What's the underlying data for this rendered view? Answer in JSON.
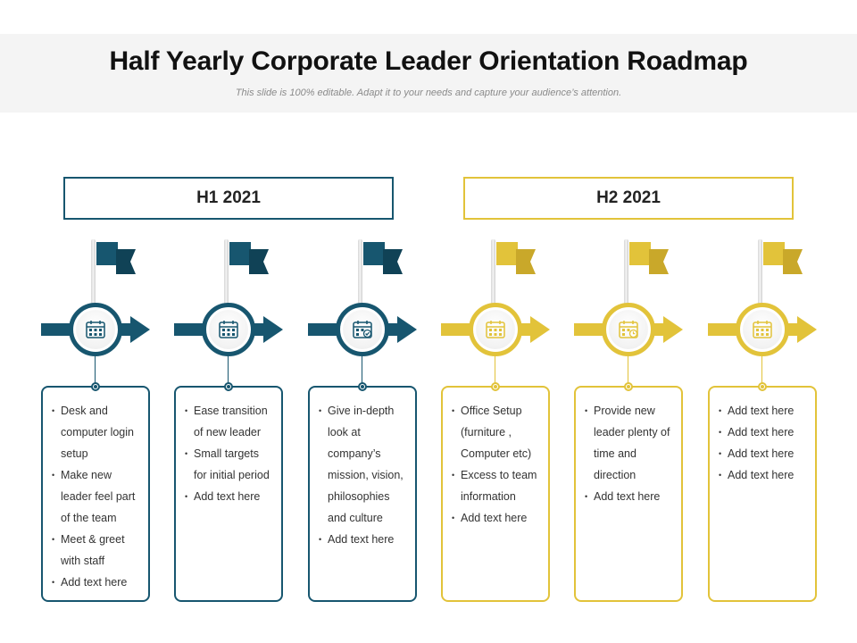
{
  "header": {
    "title": "Half Yearly Corporate Leader Orientation Roadmap",
    "subtitle": "This slide is 100% editable. Adapt it to your needs and capture your audience’s attention."
  },
  "periods": [
    {
      "label": "H1 2021"
    },
    {
      "label": "H2 2021"
    }
  ],
  "colors": {
    "blue": "#17566f",
    "yellow": "#e2c33a"
  },
  "steps": [
    {
      "icon": "calendar-icon",
      "items": [
        "Desk and computer login setup",
        "Make new leader feel part of the team",
        "Meet & greet with staff",
        "Add text here"
      ]
    },
    {
      "icon": "calendar-icon",
      "items": [
        "Ease transition of new leader",
        "Small targets for initial period",
        "Add text here"
      ]
    },
    {
      "icon": "calendar-check-icon",
      "items": [
        "Give in-depth look at company’s mission, vision, philosophies and culture",
        "Add text here"
      ]
    },
    {
      "icon": "calendar-icon",
      "items": [
        "Office Setup (furniture , Computer etc)",
        "Excess to team information",
        "Add text here"
      ]
    },
    {
      "icon": "calendar-clock-icon",
      "items": [
        "Provide new leader plenty of time and direction",
        "Add text here"
      ]
    },
    {
      "icon": "calendar-icon",
      "items": [
        "Add text here",
        "Add text here",
        "Add text here",
        "Add text here"
      ]
    }
  ]
}
